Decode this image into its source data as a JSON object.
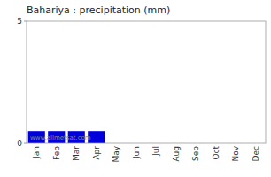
{
  "chart_data": {
    "type": "bar",
    "title": "Bahariya : precipitation (mm)",
    "categories": [
      "Jan",
      "Feb",
      "Mar",
      "Apr",
      "May",
      "Jun",
      "Jul",
      "Aug",
      "Sep",
      "Oct",
      "Nov",
      "Dec"
    ],
    "values": [
      0.5,
      0.5,
      0.5,
      0.5,
      0,
      0,
      0,
      0,
      0,
      0,
      0,
      0
    ],
    "color": "#0000dd",
    "ylim": [
      0,
      5
    ],
    "yticks": [
      0,
      5
    ],
    "grid": false,
    "annotations": [
      "www.allmetsat.com"
    ]
  }
}
